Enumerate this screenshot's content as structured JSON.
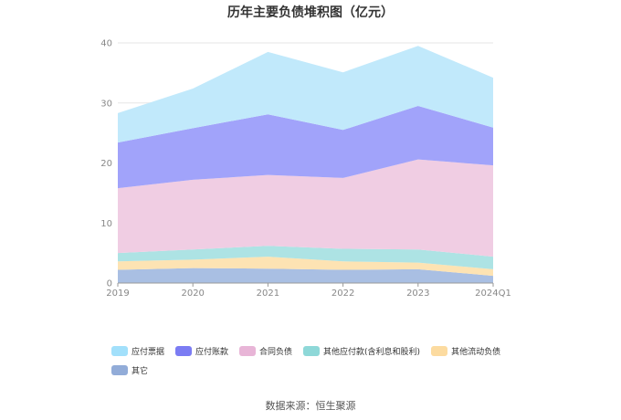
{
  "chart_data": {
    "type": "area",
    "stacked": true,
    "title": "历年主要负债堆积图（亿元）",
    "categories": [
      "2019",
      "2020",
      "2021",
      "2022",
      "2023",
      "2024Q1"
    ],
    "ylim": [
      0,
      40
    ],
    "yticks": [
      0,
      10,
      20,
      30,
      40
    ],
    "grid": true,
    "legend_position": "bottom",
    "series": [
      {
        "name": "其它",
        "color": "#a9bfe3",
        "values": [
          2.2,
          2.5,
          2.4,
          2.2,
          2.3,
          1.2
        ]
      },
      {
        "name": "其他流动负债",
        "color": "#fde3b3",
        "values": [
          1.4,
          1.4,
          2.0,
          1.4,
          1.1,
          1.1
        ]
      },
      {
        "name": "其他应付款(含利息和股利)",
        "color": "#ade3e4",
        "values": [
          1.4,
          1.7,
          1.8,
          2.1,
          2.2,
          2.1
        ]
      },
      {
        "name": "合同负债",
        "color": "#f0cde3",
        "values": [
          10.8,
          11.6,
          11.8,
          11.8,
          15.0,
          15.2
        ]
      },
      {
        "name": "应付账款",
        "color": "#a1a3fa",
        "values": [
          7.6,
          8.6,
          10.1,
          8.0,
          8.9,
          6.3
        ]
      },
      {
        "name": "应付票据",
        "color": "#c1e9fb",
        "values": [
          4.9,
          6.6,
          10.4,
          9.6,
          10.0,
          8.3
        ]
      }
    ]
  },
  "legend": {
    "items": [
      {
        "label": "应付票据",
        "color": "#a2e0fb"
      },
      {
        "label": "应付账款",
        "color": "#7b7cf3"
      },
      {
        "label": "合同负债",
        "color": "#e8b5d7"
      },
      {
        "label": "其他应付款(含利息和股利)",
        "color": "#8ed8d8"
      },
      {
        "label": "其他流动负债",
        "color": "#fcdba0"
      },
      {
        "label": "其它",
        "color": "#92acd8"
      }
    ]
  },
  "source": "数据来源：恒生聚源"
}
